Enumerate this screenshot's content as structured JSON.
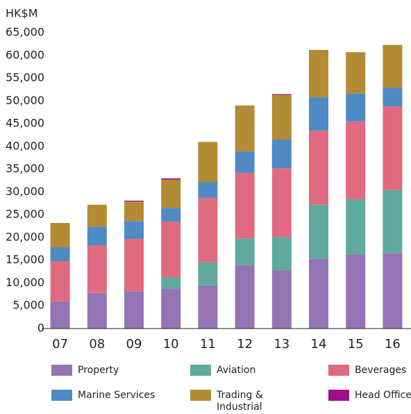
{
  "chart_data": {
    "type": "stacked_bar",
    "y_label": "HK$M",
    "categories": [
      "07",
      "08",
      "09",
      "10",
      "11",
      "12",
      "13",
      "14",
      "15",
      "16"
    ],
    "series": [
      {
        "name": "Property",
        "color": "#9474b4",
        "values": [
          6000,
          7800,
          8200,
          8700,
          9500,
          13900,
          12800,
          15300,
          16300,
          16600
        ]
      },
      {
        "name": "Aviation",
        "color": "#5fa99e",
        "values": [
          0,
          0,
          0,
          2600,
          5100,
          5900,
          7300,
          11900,
          12100,
          13800
        ]
      },
      {
        "name": "Beverages",
        "color": "#e06b80",
        "values": [
          8800,
          10500,
          11500,
          12200,
          14100,
          14400,
          15100,
          16300,
          17100,
          18400
        ]
      },
      {
        "name": "Marine Services",
        "color": "#4f8ac4",
        "values": [
          3050,
          4100,
          3900,
          3000,
          3500,
          4700,
          6300,
          7300,
          6100,
          4100
        ]
      },
      {
        "name": "Trading & Industrial",
        "color": "#b38b34",
        "values": [
          5350,
          4800,
          4300,
          6200,
          8800,
          10100,
          9800,
          10400,
          9100,
          9400
        ]
      },
      {
        "name": "Head Office",
        "color": "#a0108a",
        "values": [
          0,
          0,
          200,
          300,
          0,
          0,
          200,
          0,
          0,
          0
        ]
      }
    ],
    "ylim": [
      0,
      65000
    ],
    "yticks": [
      0,
      {
        "value": 5000,
        "label": "5,000"
      },
      {
        "value": 10000,
        "label": "10,000"
      },
      {
        "value": 15000,
        "label": "15,000"
      },
      {
        "value": 20000,
        "label": "20,000"
      },
      {
        "value": 25000,
        "label": "25,000"
      },
      {
        "value": 30000,
        "label": "30,000"
      },
      {
        "value": 35000,
        "label": "35,000"
      },
      {
        "value": 40000,
        "label": "40,000"
      },
      {
        "value": 45000,
        "label": "45,000"
      },
      {
        "value": 50000,
        "label": "50,000"
      },
      {
        "value": 55000,
        "label": "55,000"
      },
      {
        "value": 60000,
        "label": "60,000"
      },
      {
        "value": 65000,
        "label": "65,000"
      }
    ],
    "grid": false
  }
}
